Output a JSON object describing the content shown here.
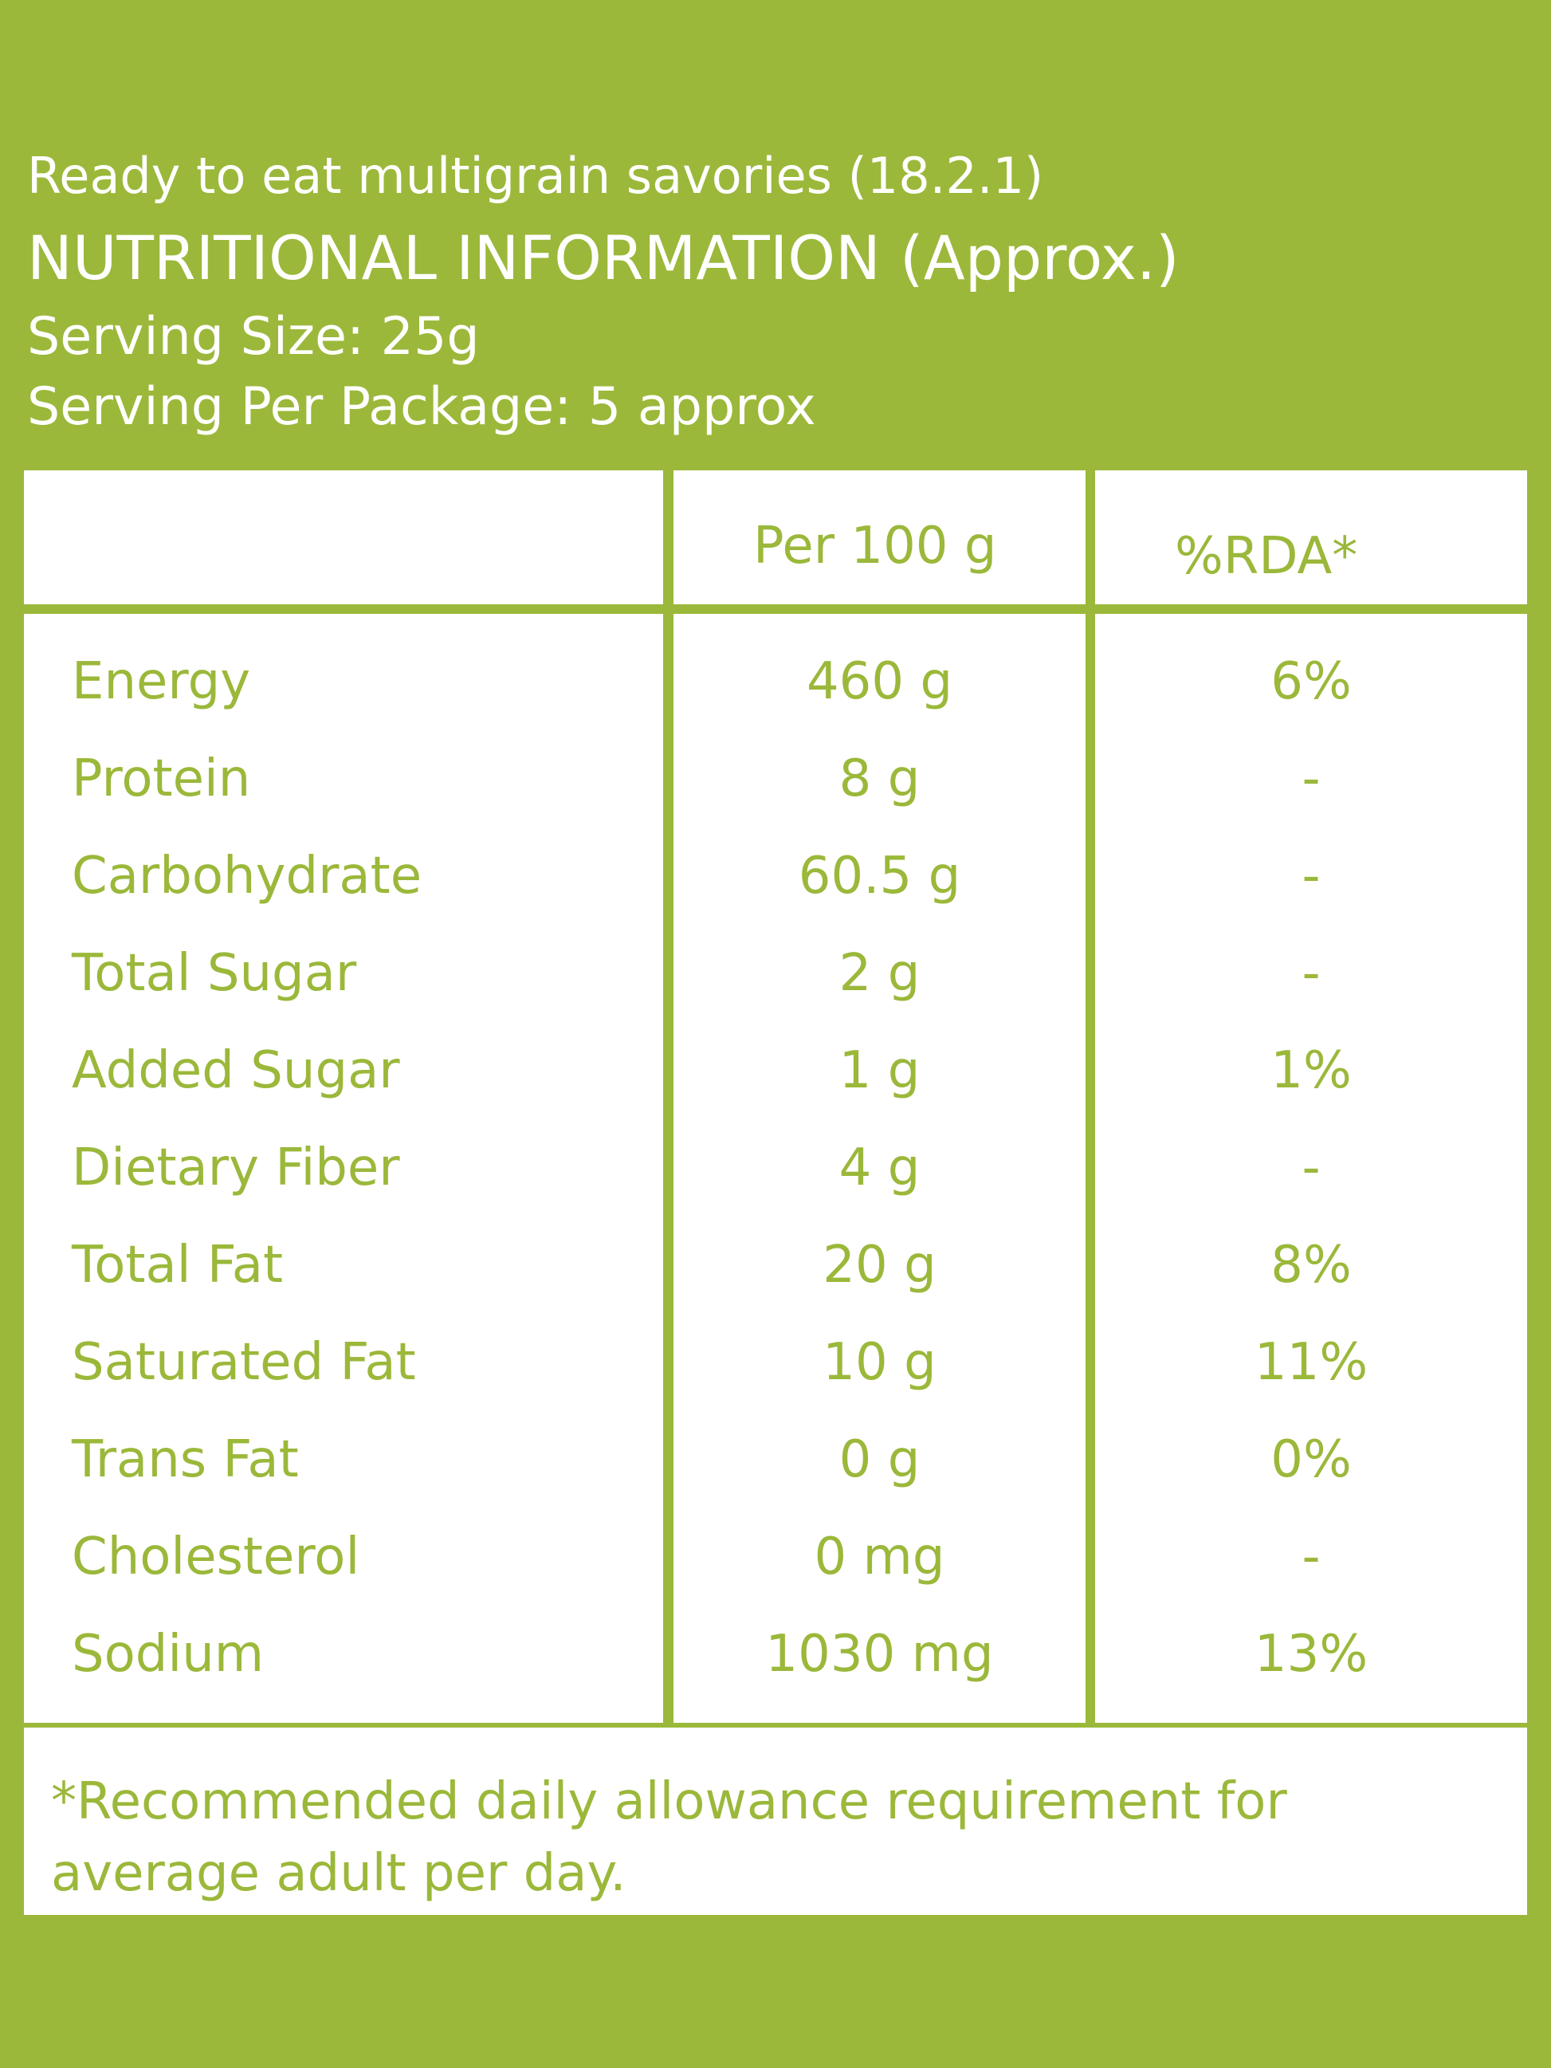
{
  "header": {
    "product_name": "Ready to eat multigrain savories (18.2.1)",
    "heading": "NUTRITIONAL INFORMATION (Approx.)",
    "serving_size": "Serving Size: 25g",
    "serving_per_package": "Serving Per Package: 5 approx"
  },
  "table": {
    "columns": [
      "",
      "Per 100 g",
      "%RDA*"
    ],
    "rows": [
      {
        "nutrient": "Energy",
        "per_100g": "460 g",
        "rda": "6%"
      },
      {
        "nutrient": "Protein",
        "per_100g": "8 g",
        "rda": "-"
      },
      {
        "nutrient": "Carbohydrate",
        "per_100g": "60.5 g",
        "rda": "-"
      },
      {
        "nutrient": "Total Sugar",
        "per_100g": "2 g",
        "rda": "-"
      },
      {
        "nutrient": "Added Sugar",
        "per_100g": "1 g",
        "rda": "1%"
      },
      {
        "nutrient": "Dietary Fiber",
        "per_100g": "4 g",
        "rda": "-"
      },
      {
        "nutrient": "Total Fat",
        "per_100g": "20 g",
        "rda": "8%"
      },
      {
        "nutrient": "Saturated Fat",
        "per_100g": "10 g",
        "rda": "11%"
      },
      {
        "nutrient": "Trans Fat",
        "per_100g": "0 g",
        "rda": "0%"
      },
      {
        "nutrient": "Cholesterol",
        "per_100g": "0 mg",
        "rda": "-"
      },
      {
        "nutrient": "Sodium",
        "per_100g": "1030 mg",
        "rda": "13%"
      }
    ]
  },
  "footnote": "*Recommended daily allowance requirement for average adult per day.",
  "colors": {
    "background": "#9bb83a",
    "panel": "#ffffff",
    "text_on_panel": "#9bb83a"
  }
}
